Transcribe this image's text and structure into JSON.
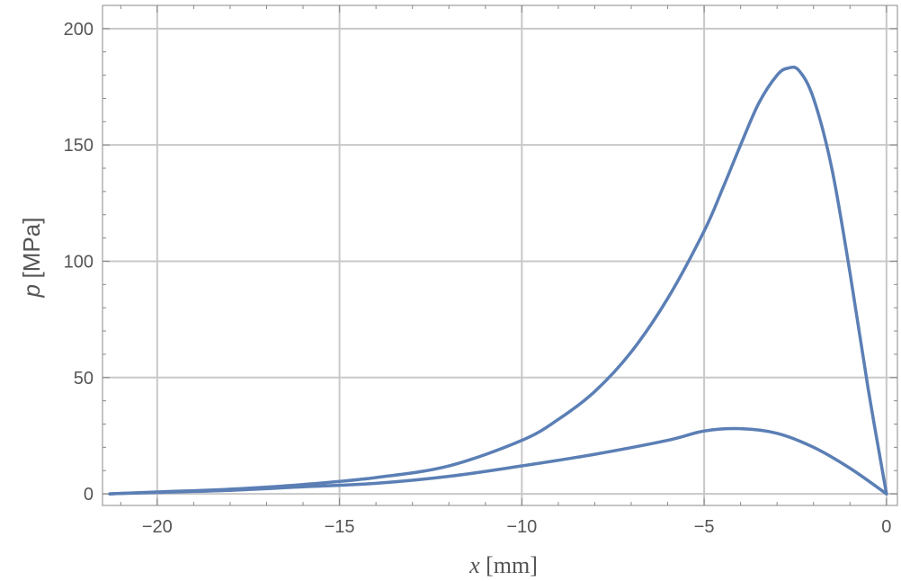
{
  "chart_data": {
    "type": "line",
    "title": "",
    "xlabel": {
      "symbol": "x",
      "unit": "[mm]"
    },
    "ylabel": {
      "symbol": "p",
      "unit": "[MPa]"
    },
    "xlim": [
      -21.5,
      0.3
    ],
    "ylim": [
      -5,
      210
    ],
    "x_ticks": [
      -20,
      -15,
      -10,
      -5,
      0
    ],
    "y_ticks": [
      0,
      50,
      100,
      150,
      200
    ],
    "x_tick_labels": [
      "−20",
      "−15",
      "−10",
      "−5",
      "0"
    ],
    "y_tick_labels": [
      "0",
      "50",
      "100",
      "150",
      "200"
    ],
    "grid": true,
    "legend": "none",
    "line_color": "#5b7fb5",
    "series": [
      {
        "x": [
          -21.3,
          -20,
          -18,
          -16,
          -14,
          -12,
          -10,
          -9,
          -8,
          -7,
          -6,
          -5,
          -4.5,
          -4,
          -3.5,
          -3,
          -2.7,
          -2.4,
          -2,
          -1.5,
          -1,
          -0.5,
          0
        ],
        "y": [
          0,
          0.8,
          2,
          4,
          7,
          12,
          23,
          32,
          44,
          61,
          84,
          113,
          131,
          150,
          168,
          180,
          183,
          182,
          170,
          140,
          95,
          45,
          0
        ]
      },
      {
        "x": [
          -21.3,
          -20,
          -18,
          -16,
          -14,
          -12,
          -10,
          -8,
          -6,
          -5,
          -4,
          -3,
          -2,
          -1,
          0
        ],
        "y": [
          0,
          0.6,
          1.5,
          3,
          4.5,
          7.5,
          12,
          17,
          23,
          27,
          28,
          26,
          20,
          11,
          0
        ]
      }
    ]
  }
}
